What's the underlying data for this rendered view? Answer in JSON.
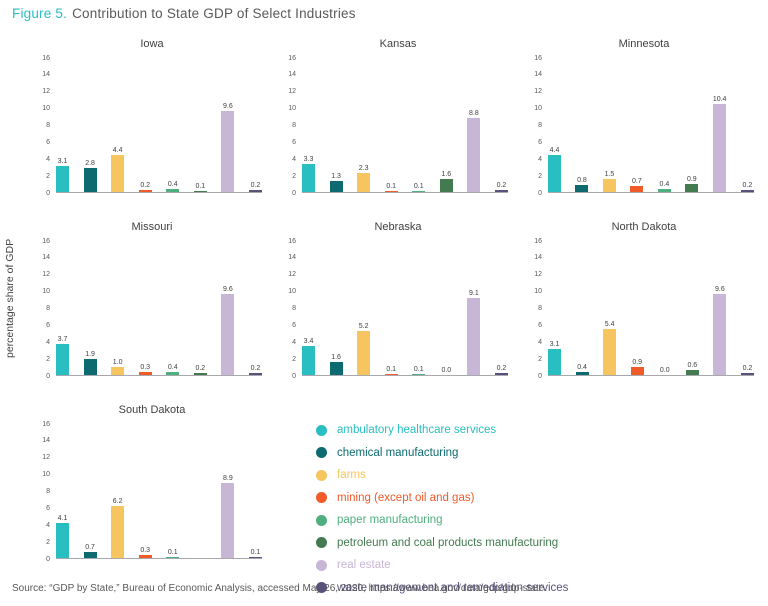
{
  "figure": {
    "label": "Figure 5.",
    "title_rest": "Contribution to State GDP of Select Industries",
    "ylabel": "percentage share of GDP",
    "source": "Source: “GDP by State,” Bureau of Economic Analysis, accessed May 26, 2020, https://www.bea.gov/data/gdp/gdp-state.",
    "accent_color": "#29BEC0"
  },
  "chart_data": {
    "type": "bar",
    "title": "Figure 5. Contribution to State GDP of Select Industries",
    "ylabel": "percentage share of GDP",
    "ylim": [
      0,
      16
    ],
    "yticks": [
      0,
      2,
      4,
      6,
      8,
      10,
      12,
      14,
      16
    ],
    "grid": false,
    "legend_position": "bottom-right",
    "industries": [
      {
        "name": "ambulatory healthcare services",
        "color": "#29BEC1"
      },
      {
        "name": "chemical manufacturing",
        "color": "#0C6A70"
      },
      {
        "name": "farms",
        "color": "#F7C55F"
      },
      {
        "name": "mining (except oil and gas)",
        "color": "#F15A29"
      },
      {
        "name": "paper manufacturing",
        "color": "#50AF7E"
      },
      {
        "name": "petroleum and coal products manufacturing",
        "color": "#437A50"
      },
      {
        "name": "real estate",
        "color": "#C8B6D6"
      },
      {
        "name": "waste management and remediation services",
        "color": "#59517B"
      }
    ],
    "charts": [
      {
        "state": "Iowa",
        "values": [
          3.1,
          2.8,
          4.4,
          0.2,
          0.4,
          0.1,
          9.6,
          0.2
        ]
      },
      {
        "state": "Kansas",
        "values": [
          3.3,
          1.3,
          2.3,
          0.1,
          0.1,
          1.6,
          8.8,
          0.2
        ]
      },
      {
        "state": "Minnesota",
        "values": [
          4.4,
          0.8,
          1.5,
          0.7,
          0.4,
          0.9,
          10.4,
          0.2
        ]
      },
      {
        "state": "Missouri",
        "values": [
          3.7,
          1.9,
          1.0,
          0.3,
          0.4,
          0.2,
          9.6,
          0.2
        ]
      },
      {
        "state": "Nebraska",
        "values": [
          3.4,
          1.6,
          5.2,
          0.1,
          0.1,
          0.0,
          9.1,
          0.2
        ]
      },
      {
        "state": "North Dakota",
        "values": [
          3.1,
          0.4,
          5.4,
          0.9,
          0.0,
          0.6,
          9.6,
          0.2
        ]
      },
      {
        "state": "South Dakota",
        "values": [
          4.1,
          0.7,
          6.2,
          0.3,
          0.1,
          null,
          8.9,
          0.1
        ]
      }
    ]
  }
}
